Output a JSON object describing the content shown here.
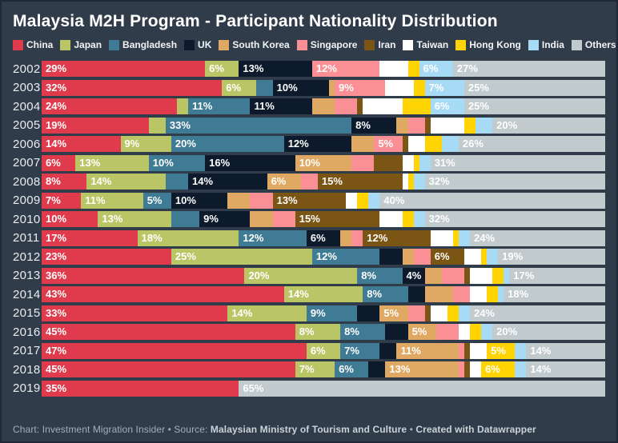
{
  "title": "Malaysia M2H Program - Participant Nationality Distribution",
  "legend": [
    {
      "label": "China",
      "color": "#DF3B4D"
    },
    {
      "label": "Japan",
      "color": "#BAC566"
    },
    {
      "label": "Bangladesh",
      "color": "#3F7B94"
    },
    {
      "label": "UK",
      "color": "#0C1A2B"
    },
    {
      "label": "South Korea",
      "color": "#E0A963"
    },
    {
      "label": "Singapore",
      "color": "#FA9096"
    },
    {
      "label": "Iran",
      "color": "#7A5514"
    },
    {
      "label": "Taiwan",
      "color": "#FFFFFF"
    },
    {
      "label": "Hong Kong",
      "color": "#FFD402"
    },
    {
      "label": "India",
      "color": "#A7DAF5"
    },
    {
      "label": "Others",
      "color": "#C1CACD"
    }
  ],
  "footer": {
    "parts": [
      {
        "text": "Chart: Investment Migration Insider • Source: ",
        "bold": false
      },
      {
        "text": "Malaysian Ministry of Tourism and Culture",
        "bold": true
      },
      {
        "text": " • ",
        "bold": false
      },
      {
        "text": "Created with Datawrapper",
        "bold": true
      }
    ]
  },
  "chart_data": {
    "type": "bar",
    "variant": "horizontal-stacked-100percent",
    "unit": "%",
    "title": "Malaysia M2H Program - Participant Nationality Distribution",
    "legend_position": "top",
    "grid": false,
    "xlim": [
      0,
      100
    ],
    "series_names": [
      "China",
      "Japan",
      "Bangladesh",
      "UK",
      "South Korea",
      "Singapore",
      "Iran",
      "Taiwan",
      "Hong Kong",
      "India",
      "Others"
    ],
    "colors": {
      "China": "#DF3B4D",
      "Japan": "#BAC566",
      "Bangladesh": "#3F7B94",
      "UK": "#0C1A2B",
      "South Korea": "#E0A963",
      "Singapore": "#FA9096",
      "Iran": "#7A5514",
      "Taiwan": "#FFFFFF",
      "Hong Kong": "#FFD402",
      "India": "#A7DAF5",
      "Others": "#C1CACD"
    },
    "categories": [
      "2002",
      "2003",
      "2004",
      "2005",
      "2006",
      "2007",
      "2008",
      "2009",
      "2010",
      "2011",
      "2012",
      "2013",
      "2014",
      "2015",
      "2016",
      "2017",
      "2018",
      "2019"
    ],
    "rows": [
      {
        "year": "2002",
        "values": [
          29,
          6,
          0,
          13,
          0,
          12,
          0,
          5,
          2,
          6,
          27
        ],
        "labels": [
          "29%",
          "6%",
          "",
          "13%",
          "",
          "12%",
          "",
          "",
          "",
          "6%",
          "27%"
        ]
      },
      {
        "year": "2003",
        "values": [
          32,
          6,
          3,
          10,
          1,
          9,
          0,
          5,
          2,
          7,
          25
        ],
        "labels": [
          "32%",
          "6%",
          "",
          "10%",
          "",
          "9%",
          "",
          "",
          "",
          "7%",
          "25%"
        ]
      },
      {
        "year": "2004",
        "values": [
          24,
          2,
          11,
          11,
          4,
          4,
          1,
          7,
          5,
          6,
          25
        ],
        "labels": [
          "24%",
          "",
          "11%",
          "11%",
          "",
          "",
          "",
          "",
          "",
          "6%",
          "25%"
        ]
      },
      {
        "year": "2005",
        "values": [
          19,
          3,
          33,
          8,
          2,
          3,
          1,
          6,
          2,
          3,
          20
        ],
        "labels": [
          "19%",
          "",
          "33%",
          "8%",
          "",
          "",
          "",
          "",
          "",
          "",
          "20%"
        ]
      },
      {
        "year": "2006",
        "values": [
          14,
          9,
          20,
          12,
          4,
          5,
          1,
          3,
          3,
          3,
          26
        ],
        "labels": [
          "14%",
          "9%",
          "20%",
          "12%",
          "",
          "5%",
          "",
          "",
          "",
          "",
          "26%"
        ]
      },
      {
        "year": "2007",
        "values": [
          6,
          13,
          10,
          16,
          10,
          4,
          5,
          2,
          1,
          2,
          31
        ],
        "labels": [
          "6%",
          "13%",
          "10%",
          "16%",
          "10%",
          "",
          "",
          "",
          "",
          "",
          "31%"
        ]
      },
      {
        "year": "2008",
        "values": [
          8,
          14,
          4,
          14,
          6,
          3,
          15,
          1,
          1,
          2,
          32
        ],
        "labels": [
          "8%",
          "14%",
          "",
          "14%",
          "6%",
          "",
          "15%",
          "",
          "",
          "",
          "32%"
        ]
      },
      {
        "year": "2009",
        "values": [
          7,
          11,
          5,
          10,
          4,
          4,
          13,
          2,
          2,
          2,
          40
        ],
        "labels": [
          "7%",
          "11%",
          "5%",
          "10%",
          "",
          "",
          "13%",
          "",
          "",
          "",
          "40%"
        ]
      },
      {
        "year": "2010",
        "values": [
          10,
          13,
          5,
          9,
          4,
          4,
          15,
          4,
          2,
          2,
          32
        ],
        "labels": [
          "10%",
          "13%",
          "",
          "9%",
          "",
          "",
          "15%",
          "",
          "",
          "",
          "32%"
        ]
      },
      {
        "year": "2011",
        "values": [
          17,
          18,
          12,
          6,
          2,
          2,
          12,
          4,
          1,
          2,
          24
        ],
        "labels": [
          "17%",
          "18%",
          "12%",
          "6%",
          "",
          "",
          "12%",
          "",
          "",
          "",
          "24%"
        ]
      },
      {
        "year": "2012",
        "values": [
          23,
          25,
          12,
          4,
          2,
          3,
          6,
          3,
          1,
          2,
          19
        ],
        "labels": [
          "23%",
          "25%",
          "12%",
          "",
          "",
          "",
          "6%",
          "",
          "",
          "",
          "19%"
        ]
      },
      {
        "year": "2013",
        "values": [
          36,
          20,
          8,
          4,
          3,
          4,
          1,
          4,
          2,
          1,
          17
        ],
        "labels": [
          "36%",
          "20%",
          "8%",
          "4%",
          "",
          "",
          "",
          "",
          "",
          "",
          "17%"
        ]
      },
      {
        "year": "2014",
        "values": [
          43,
          14,
          8,
          3,
          5,
          3,
          0,
          3,
          2,
          1,
          18
        ],
        "labels": [
          "43%",
          "14%",
          "8%",
          "",
          "",
          "",
          "",
          "",
          "",
          "",
          "18%"
        ]
      },
      {
        "year": "2015",
        "values": [
          33,
          14,
          9,
          4,
          5,
          3,
          1,
          3,
          2,
          2,
          24
        ],
        "labels": [
          "33%",
          "14%",
          "9%",
          "",
          "5%",
          "",
          "",
          "",
          "",
          "",
          "24%"
        ]
      },
      {
        "year": "2016",
        "values": [
          45,
          8,
          8,
          4,
          5,
          4,
          0,
          2,
          2,
          2,
          20
        ],
        "labels": [
          "45%",
          "8%",
          "8%",
          "",
          "5%",
          "",
          "",
          "",
          "",
          "",
          "20%"
        ]
      },
      {
        "year": "2017",
        "values": [
          47,
          6,
          7,
          3,
          11,
          1,
          1,
          3,
          5,
          2,
          14
        ],
        "labels": [
          "47%",
          "6%",
          "7%",
          "",
          "11%",
          "",
          "",
          "",
          "5%",
          "",
          "14%"
        ]
      },
      {
        "year": "2018",
        "values": [
          45,
          7,
          6,
          3,
          13,
          1,
          1,
          2,
          6,
          2,
          14
        ],
        "labels": [
          "45%",
          "7%",
          "6%",
          "",
          "13%",
          "",
          "",
          "",
          "6%",
          "",
          "14%"
        ]
      },
      {
        "year": "2019",
        "values": [
          35,
          0,
          0,
          0,
          0,
          0,
          0,
          0,
          0,
          0,
          65
        ],
        "labels": [
          "35%",
          "",
          "",
          "",
          "",
          "",
          "",
          "",
          "",
          "",
          "65%"
        ]
      }
    ]
  }
}
